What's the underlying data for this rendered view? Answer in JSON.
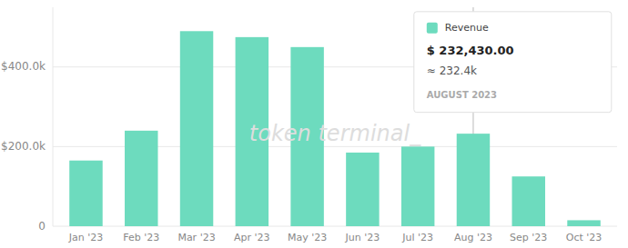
{
  "chart_data": {
    "type": "bar",
    "categories": [
      "Jan '23",
      "Feb '23",
      "Mar '23",
      "Apr '23",
      "May '23",
      "Jun '23",
      "Jul '23",
      "Aug '23",
      "Sep '23",
      "Oct '23"
    ],
    "values": [
      165000,
      240000,
      490000,
      475000,
      450000,
      185000,
      200000,
      232430,
      125000,
      15000
    ],
    "color": "#6ddbbe",
    "ylim": [
      0,
      550000
    ],
    "yticks": [
      0,
      {
        "value": 200000,
        "label": "$200.0k"
      },
      {
        "value": 400000,
        "label": "$400.0k"
      }
    ],
    "grid": true,
    "annotations": [
      {
        "text": "token terminal_"
      },
      {
        "x": "Aug '23",
        "lines": [
          "Revenue",
          "$ 232,430.00",
          "≈ 232.4k",
          "AUGUST 2023"
        ]
      }
    ]
  }
}
